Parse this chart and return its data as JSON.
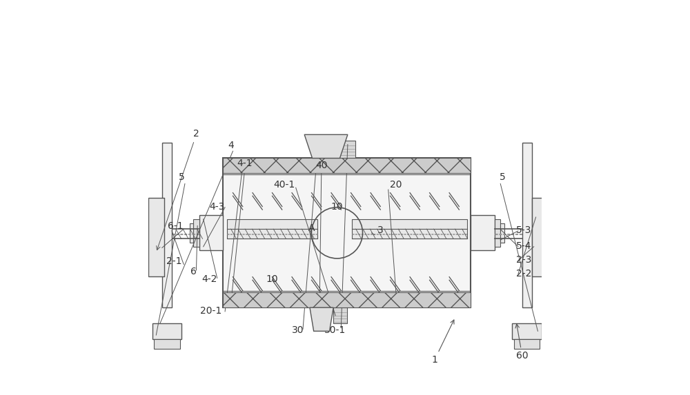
{
  "bg_color": "#ffffff",
  "line_color": "#555555",
  "light_line": "#999999",
  "fig_width": 10.0,
  "fig_height": 5.73
}
